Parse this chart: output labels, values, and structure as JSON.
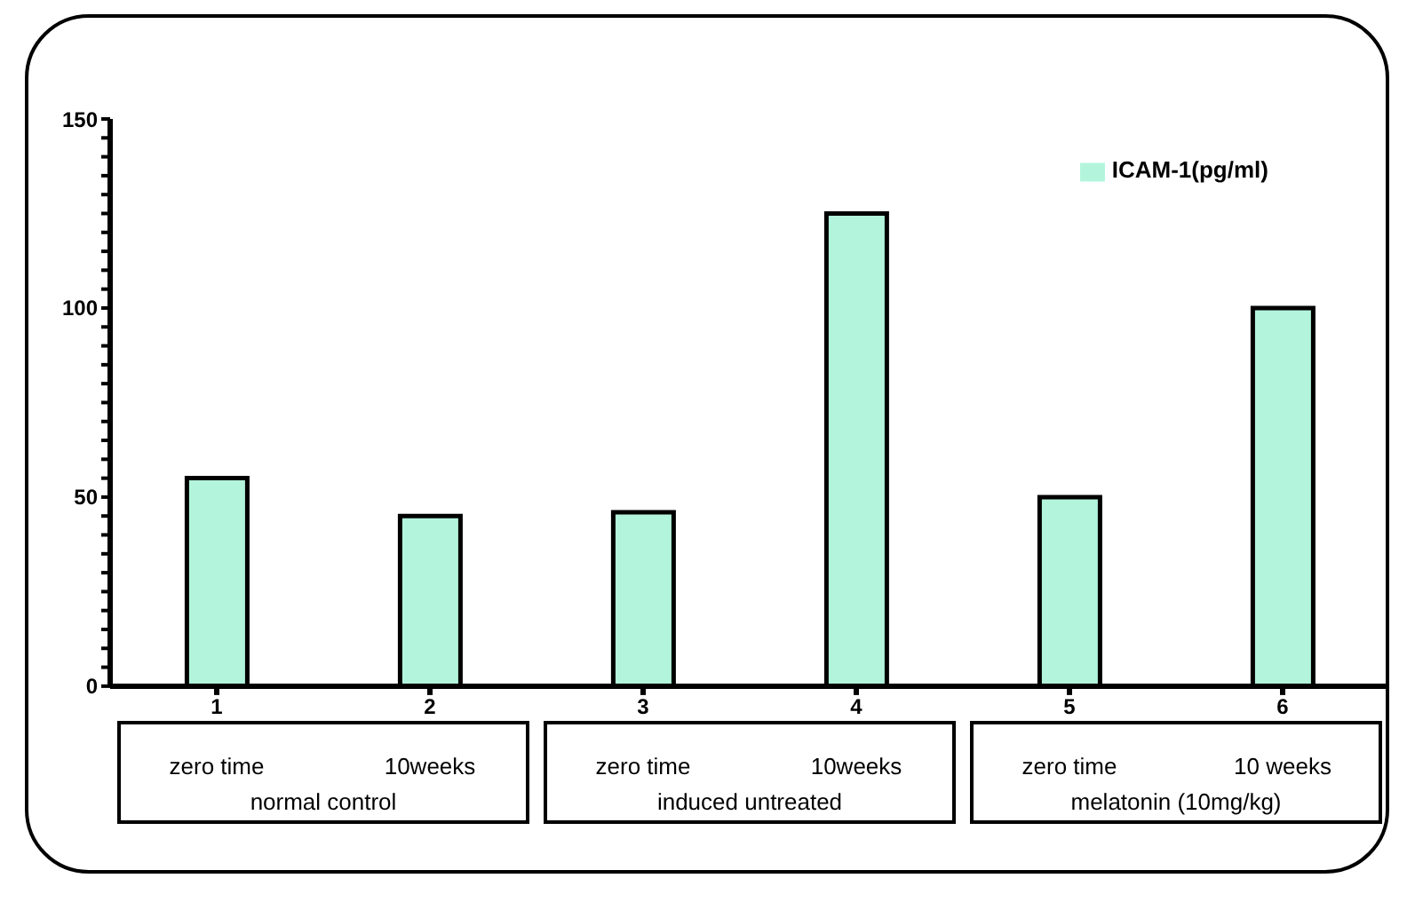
{
  "chart_data": {
    "type": "bar",
    "categories": [
      "1",
      "2",
      "3",
      "4",
      "5",
      "6"
    ],
    "series": [
      {
        "name": "ICAM-1(pg/ml)",
        "color": "#b3f5dc",
        "values": [
          55,
          45,
          46,
          125,
          50,
          100
        ]
      }
    ],
    "ylim": [
      0,
      150
    ],
    "yticks": [
      0,
      {
        "value": 5,
        "label": null
      },
      {
        "value": 10,
        "label": null
      },
      {
        "value": 15,
        "label": null
      },
      {
        "value": 20,
        "label": null
      },
      {
        "value": 25,
        "label": null
      },
      {
        "value": 30,
        "label": null
      },
      {
        "value": 35,
        "label": null
      },
      {
        "value": 40,
        "label": null
      },
      {
        "value": 45,
        "label": null
      },
      50,
      {
        "value": 55,
        "label": null
      },
      {
        "value": 60,
        "label": null
      },
      {
        "value": 65,
        "label": null
      },
      {
        "value": 70,
        "label": null
      },
      {
        "value": 75,
        "label": null
      },
      {
        "value": 80,
        "label": null
      },
      {
        "value": 85,
        "label": null
      },
      {
        "value": 90,
        "label": null
      },
      {
        "value": 95,
        "label": null
      },
      100,
      {
        "value": 105,
        "label": null
      },
      {
        "value": 110,
        "label": null
      },
      {
        "value": 115,
        "label": null
      },
      {
        "value": 120,
        "label": null
      },
      {
        "value": 125,
        "label": null
      },
      {
        "value": 130,
        "label": null
      },
      {
        "value": 135,
        "label": null
      },
      {
        "value": 140,
        "label": null
      },
      {
        "value": 145,
        "label": null
      },
      150
    ],
    "annotations": [
      "zero time",
      "10weeks",
      "zero time",
      "10weeks",
      "zero time",
      "10 weeks",
      "normal control",
      "induced untreated",
      "melatonin (10mg/kg)"
    ],
    "grid": false,
    "legend": "top right"
  }
}
